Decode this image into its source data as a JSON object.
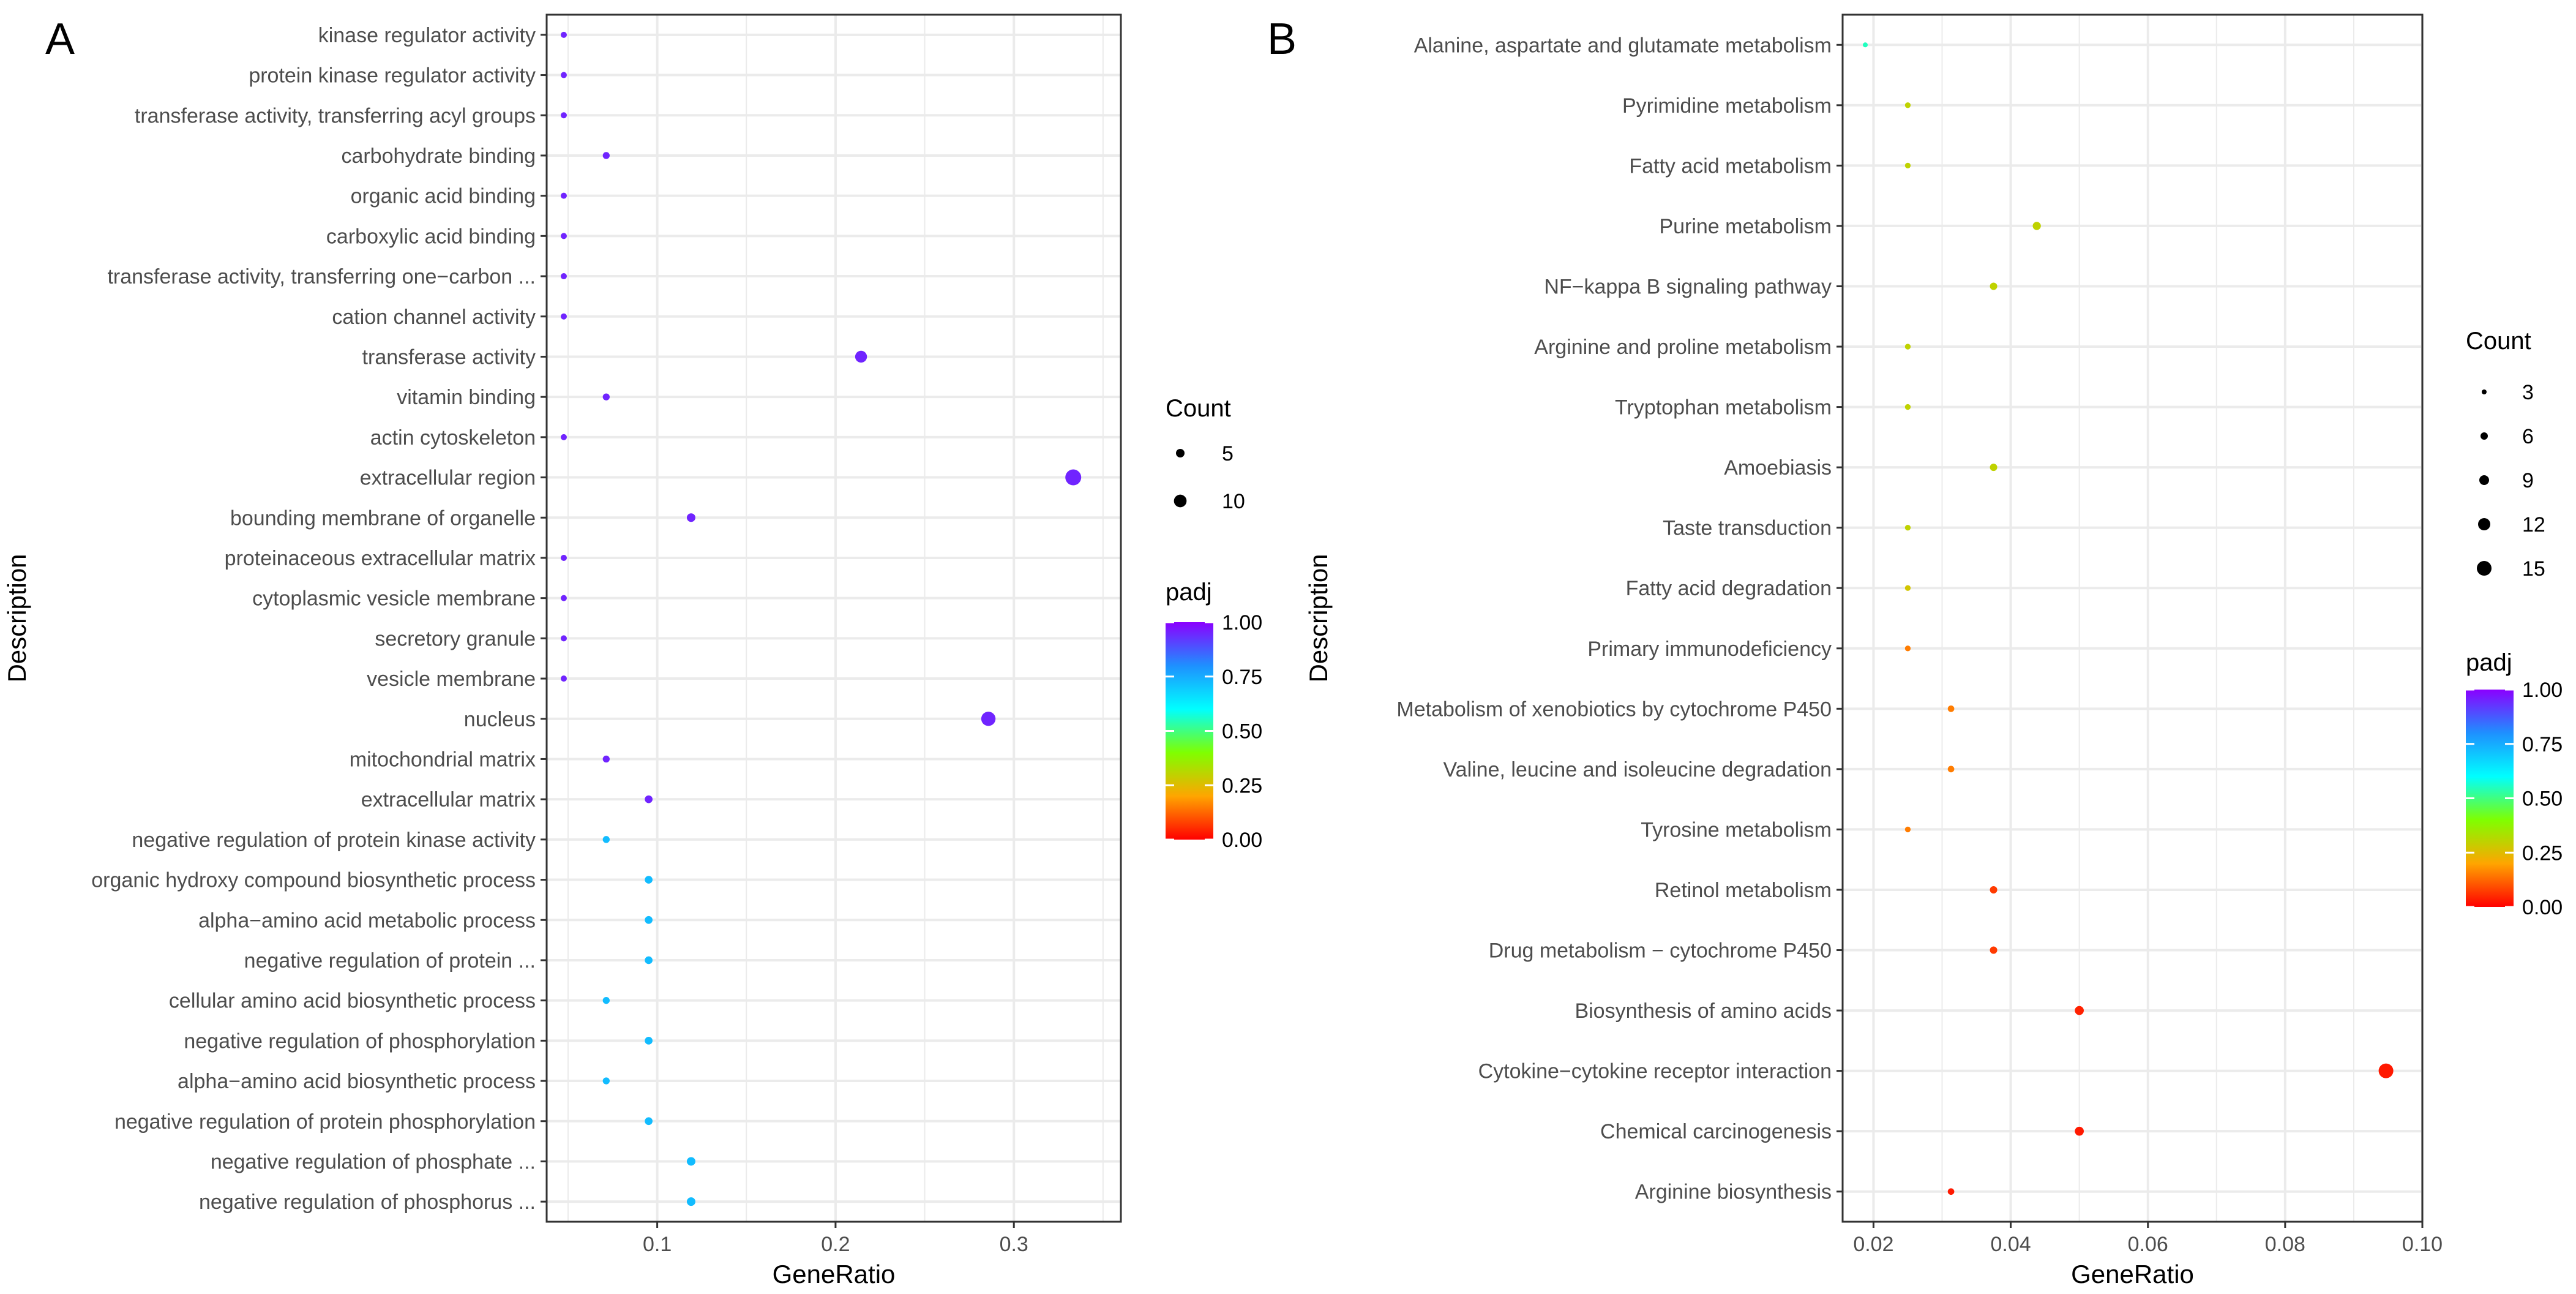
{
  "chart_data": [
    {
      "panel": "A",
      "type": "scatter",
      "xlabel": "GeneRatio",
      "ylabel": "Description",
      "xlim": [
        0.038,
        0.36
      ],
      "xticks": [
        0.1,
        0.2,
        0.3
      ],
      "xtick_labels": [
        "0.1",
        "0.2",
        "0.3"
      ],
      "size_legend": {
        "title": "Count",
        "values": [
          5,
          10
        ],
        "labels": [
          "5",
          "10"
        ]
      },
      "color_legend": {
        "title": "padj",
        "ticks": [
          1.0,
          0.75,
          0.5,
          0.25,
          0.0
        ],
        "labels": [
          "1.00",
          "0.75",
          "0.50",
          "0.25",
          "0.00"
        ]
      },
      "points": [
        {
          "term": "kinase regulator activity",
          "x": 0.0476,
          "count": 2,
          "padj": 0.95
        },
        {
          "term": "protein kinase regulator activity",
          "x": 0.0476,
          "count": 2,
          "padj": 0.95
        },
        {
          "term": "transferase activity, transferring acyl groups",
          "x": 0.0476,
          "count": 2,
          "padj": 0.95
        },
        {
          "term": "carbohydrate binding",
          "x": 0.0714,
          "count": 3,
          "padj": 0.95
        },
        {
          "term": "organic acid binding",
          "x": 0.0476,
          "count": 2,
          "padj": 0.95
        },
        {
          "term": "carboxylic acid binding",
          "x": 0.0476,
          "count": 2,
          "padj": 0.95
        },
        {
          "term": "transferase activity, transferring one−carbon ...",
          "x": 0.0476,
          "count": 2,
          "padj": 0.95
        },
        {
          "term": "cation channel activity",
          "x": 0.0476,
          "count": 2,
          "padj": 0.95
        },
        {
          "term": "transferase activity",
          "x": 0.2143,
          "count": 9,
          "padj": 0.95
        },
        {
          "term": "vitamin binding",
          "x": 0.0714,
          "count": 3,
          "padj": 0.95
        },
        {
          "term": "actin cytoskeleton",
          "x": 0.0476,
          "count": 2,
          "padj": 0.95
        },
        {
          "term": "extracellular region",
          "x": 0.3333,
          "count": 14,
          "padj": 0.95
        },
        {
          "term": "bounding membrane of organelle",
          "x": 0.119,
          "count": 5,
          "padj": 0.95
        },
        {
          "term": "proteinaceous extracellular matrix",
          "x": 0.0476,
          "count": 2,
          "padj": 0.95
        },
        {
          "term": "cytoplasmic vesicle membrane",
          "x": 0.0476,
          "count": 2,
          "padj": 0.95
        },
        {
          "term": "secretory granule",
          "x": 0.0476,
          "count": 2,
          "padj": 0.95
        },
        {
          "term": "vesicle membrane",
          "x": 0.0476,
          "count": 2,
          "padj": 0.95
        },
        {
          "term": "nucleus",
          "x": 0.2857,
          "count": 12,
          "padj": 0.95
        },
        {
          "term": "mitochondrial matrix",
          "x": 0.0714,
          "count": 3,
          "padj": 0.95
        },
        {
          "term": "extracellular matrix",
          "x": 0.0952,
          "count": 4,
          "padj": 0.95
        },
        {
          "term": "negative regulation of protein kinase activity",
          "x": 0.0714,
          "count": 3,
          "padj": 0.72
        },
        {
          "term": "organic hydroxy compound biosynthetic process",
          "x": 0.0952,
          "count": 4,
          "padj": 0.72
        },
        {
          "term": "alpha−amino acid metabolic process",
          "x": 0.0952,
          "count": 4,
          "padj": 0.72
        },
        {
          "term": "negative regulation of protein ...",
          "x": 0.0952,
          "count": 4,
          "padj": 0.72
        },
        {
          "term": "cellular amino acid biosynthetic process",
          "x": 0.0714,
          "count": 3,
          "padj": 0.72
        },
        {
          "term": "negative regulation of phosphorylation",
          "x": 0.0952,
          "count": 4,
          "padj": 0.72
        },
        {
          "term": "alpha−amino acid biosynthetic process",
          "x": 0.0714,
          "count": 3,
          "padj": 0.72
        },
        {
          "term": "negative regulation of protein phosphorylation",
          "x": 0.0952,
          "count": 4,
          "padj": 0.72
        },
        {
          "term": "negative regulation of phosphate ...",
          "x": 0.119,
          "count": 5,
          "padj": 0.72
        },
        {
          "term": "negative regulation of phosphorus ...",
          "x": 0.119,
          "count": 5,
          "padj": 0.72
        }
      ]
    },
    {
      "panel": "B",
      "type": "scatter",
      "xlabel": "GeneRatio",
      "ylabel": "Description",
      "xlim": [
        0.0155,
        0.1
      ],
      "xticks": [
        0.02,
        0.04,
        0.06,
        0.08,
        0.1
      ],
      "xtick_labels": [
        "0.02",
        "0.04",
        "0.06",
        "0.08",
        "0.10"
      ],
      "size_legend": {
        "title": "Count",
        "values": [
          3,
          6,
          9,
          12,
          15
        ],
        "labels": [
          "3",
          "6",
          "9",
          "12",
          "15"
        ]
      },
      "color_legend": {
        "title": "padj",
        "ticks": [
          1.0,
          0.75,
          0.5,
          0.25,
          0.0
        ],
        "labels": [
          "1.00",
          "0.75",
          "0.50",
          "0.25",
          "0.00"
        ]
      },
      "points": [
        {
          "term": "Alanine, aspartate and glutamate metabolism",
          "x": 0.0188,
          "count": 3,
          "padj": 0.55
        },
        {
          "term": "Pyrimidine metabolism",
          "x": 0.025,
          "count": 4,
          "padj": 0.3
        },
        {
          "term": "Fatty acid metabolism",
          "x": 0.025,
          "count": 4,
          "padj": 0.3
        },
        {
          "term": "Purine metabolism",
          "x": 0.0438,
          "count": 7,
          "padj": 0.3
        },
        {
          "term": "NF−kappa B signaling pathway",
          "x": 0.0375,
          "count": 6,
          "padj": 0.3
        },
        {
          "term": "Arginine and proline metabolism",
          "x": 0.025,
          "count": 4,
          "padj": 0.3
        },
        {
          "term": "Tryptophan metabolism",
          "x": 0.025,
          "count": 4,
          "padj": 0.3
        },
        {
          "term": "Amoebiasis",
          "x": 0.0375,
          "count": 6,
          "padj": 0.3
        },
        {
          "term": "Taste transduction",
          "x": 0.025,
          "count": 4,
          "padj": 0.3
        },
        {
          "term": "Fatty acid degradation",
          "x": 0.025,
          "count": 4,
          "padj": 0.27
        },
        {
          "term": "Primary immunodeficiency",
          "x": 0.025,
          "count": 4,
          "padj": 0.15
        },
        {
          "term": "Metabolism of xenobiotics by cytochrome P450",
          "x": 0.0313,
          "count": 5,
          "padj": 0.15
        },
        {
          "term": "Valine, leucine and isoleucine degradation",
          "x": 0.0313,
          "count": 5,
          "padj": 0.15
        },
        {
          "term": "Tyrosine metabolism",
          "x": 0.025,
          "count": 4,
          "padj": 0.15
        },
        {
          "term": "Retinol metabolism",
          "x": 0.0375,
          "count": 6,
          "padj": 0.07
        },
        {
          "term": "Drug metabolism − cytochrome P450",
          "x": 0.0375,
          "count": 6,
          "padj": 0.07
        },
        {
          "term": "Biosynthesis of amino acids",
          "x": 0.05,
          "count": 8,
          "padj": 0.04
        },
        {
          "term": "Cytokine−cytokine receptor interaction",
          "x": 0.0947,
          "count": 15,
          "padj": 0.03
        },
        {
          "term": "Chemical carcinogenesis",
          "x": 0.05,
          "count": 8,
          "padj": 0.03
        },
        {
          "term": "Arginine biosynthesis",
          "x": 0.0313,
          "count": 5,
          "padj": 0.03
        }
      ]
    }
  ]
}
